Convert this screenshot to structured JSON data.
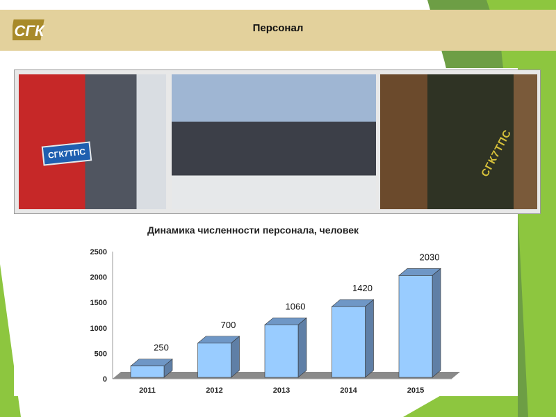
{
  "header": {
    "title": "Персонал",
    "logo_text": "СГК"
  },
  "photos": [
    {
      "label": "worker-red-jacket",
      "badge": "СГК7ТПС"
    },
    {
      "label": "engineers-with-blueprints"
    },
    {
      "label": "welder-grinding",
      "badge": "СГК7ТПС"
    }
  ],
  "colors": {
    "header": "#e3d19c",
    "bar_front": "#99ccff",
    "bar_side": "#5f7fa6",
    "bar_top": "#6f97c6",
    "floor": "#8a8a8a",
    "accent_green": "#8dc63f"
  },
  "chart_data": {
    "type": "bar",
    "title": "Динамика численности персонала, человек",
    "categories": [
      "2011",
      "2012",
      "2013",
      "2014",
      "2015"
    ],
    "values": [
      250,
      700,
      1060,
      1420,
      2030
    ],
    "data_labels": [
      "250",
      "700",
      "1060",
      "1420",
      "2030"
    ],
    "yticks": [
      "0",
      "500",
      "1000",
      "1500",
      "2000",
      "2500"
    ],
    "ylim": [
      0,
      2500
    ],
    "xlabel": "",
    "ylabel": "",
    "grid": false,
    "legend": "none",
    "style": "3d"
  }
}
